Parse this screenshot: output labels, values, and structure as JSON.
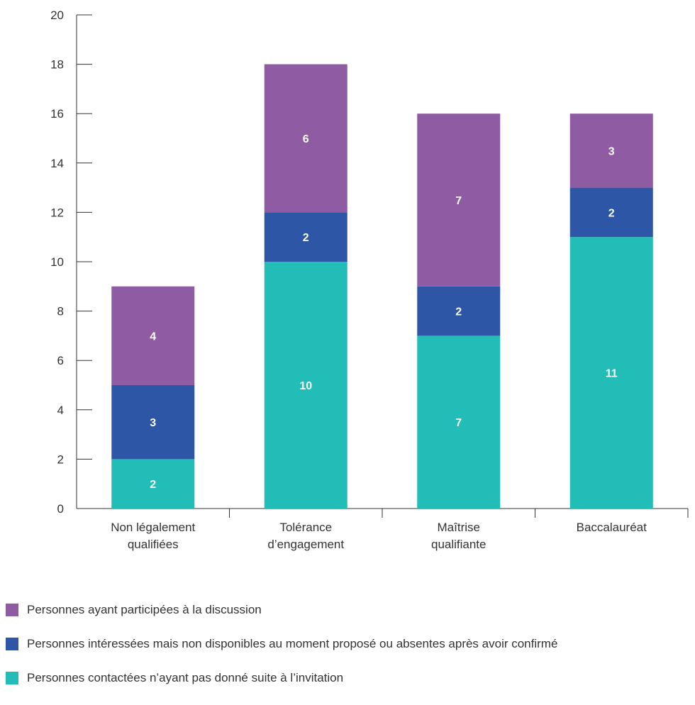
{
  "chart_data": {
    "type": "bar",
    "stacked": true,
    "categories": [
      [
        "Non légalement",
        "qualifiées"
      ],
      [
        "Tolérance",
        "d’engagement"
      ],
      [
        "Maîtrise",
        "qualifiante"
      ],
      [
        "Baccalauréat"
      ]
    ],
    "series": [
      {
        "name": "Personnes contactées n’ayant pas donné suite à l’invitation",
        "color": "#22bdb6",
        "values": [
          2,
          10,
          7,
          11
        ]
      },
      {
        "name": "Personnes intéressées mais non disponibles au moment proposé ou absentes après avoir confirmé",
        "color": "#2d57a6",
        "values": [
          3,
          2,
          2,
          2
        ]
      },
      {
        "name": "Personnes ayant participées à la discussion",
        "color": "#8f5ca3",
        "values": [
          4,
          6,
          7,
          3
        ]
      }
    ],
    "ylim": [
      0,
      20
    ],
    "yticks": [
      0,
      2,
      4,
      6,
      8,
      10,
      12,
      14,
      16,
      18,
      20
    ],
    "grid": false,
    "legend_position": "bottom"
  },
  "legend": {
    "order": [
      2,
      1,
      0
    ]
  }
}
